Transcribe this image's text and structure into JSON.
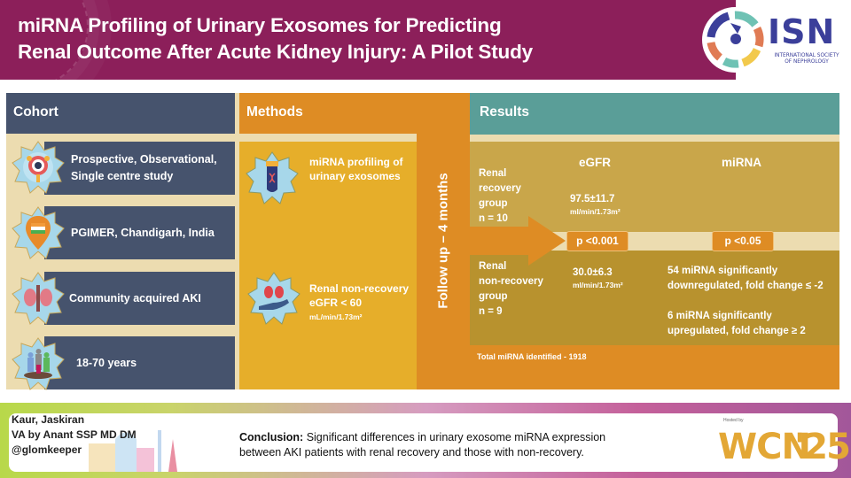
{
  "header": {
    "title_line1": "miRNA Profiling of Urinary Exosomes for Predicting",
    "title_line2": "Renal Outcome After Acute Kidney Injury: A Pilot Study",
    "logo": {
      "name": "ISN",
      "subtitle_line1": "INTERNATIONAL SOCIETY",
      "subtitle_line2": "OF NEPHROLOGY"
    }
  },
  "cohort": {
    "title": "Cohort",
    "items": [
      {
        "icon": "research-target-icon",
        "line1": "Prospective, Observational,",
        "line2": "Single centre study"
      },
      {
        "icon": "india-location-pin-icon",
        "line1": "PGIMER, Chandigarh, India",
        "line2": ""
      },
      {
        "icon": "kidneys-icon",
        "line1": "Community acquired AKI",
        "line2": ""
      },
      {
        "icon": "people-group-icon",
        "line1": "18-70 years",
        "line2": ""
      }
    ]
  },
  "methods": {
    "title": "Methods",
    "item1": {
      "icon": "dna-test-tube-icon",
      "line1": "miRNA profiling of",
      "line2": "urinary exosomes"
    },
    "item2": {
      "icon": "kidney-hand-icon",
      "line1": "Renal non-recovery",
      "line2": "eGFR < 60",
      "unit": "mL/min/1.73m²"
    },
    "followup": "Follow up – 4 months"
  },
  "results": {
    "title": "Results",
    "col_egfr": "eGFR",
    "col_mirna": "miRNA",
    "recovery": {
      "label": [
        "Renal",
        "recovery",
        "group",
        "n = 10"
      ],
      "egfr": "97.5±11.7",
      "unit": "ml/min/1.73m²"
    },
    "p_egfr": "p <0.001",
    "p_mirna": "p <0.05",
    "nonrecovery": {
      "label": [
        "Renal",
        "non-recovery",
        "group",
        "n = 9"
      ],
      "egfr": "30.0±6.3",
      "unit": "ml/min/1.73m²",
      "down_line1": "54 miRNA significantly",
      "down_line2": "downregulated, fold change ≤ -2",
      "up_line1": "6 miRNA significantly",
      "up_line2": "upregulated, fold change ≥ 2"
    },
    "total": "Total miRNA identified - 1918"
  },
  "footer": {
    "author": "Kaur, Jaskiran",
    "va": "VA by Anant SSP MD DM",
    "handle": "@glomkeeper",
    "conclusion_label": "Conclusion:",
    "conclusion_line1": " Significant differences in urinary exosome miRNA expression",
    "conclusion_line2": "between AKI patients with renal recovery and those with non-recovery.",
    "event_logo": {
      "hosted_by": "Hosted by",
      "name": "WCN",
      "year": "'25"
    }
  },
  "colors": {
    "header": "#8c1f5a",
    "cohort": "#46536d",
    "methods": "#de8c24",
    "methods_body": "#e6ae2a",
    "results": "#5a9e98",
    "results_top": "#c9a64a",
    "results_bottom": "#b8922e",
    "beige": "#ecdcb0"
  }
}
